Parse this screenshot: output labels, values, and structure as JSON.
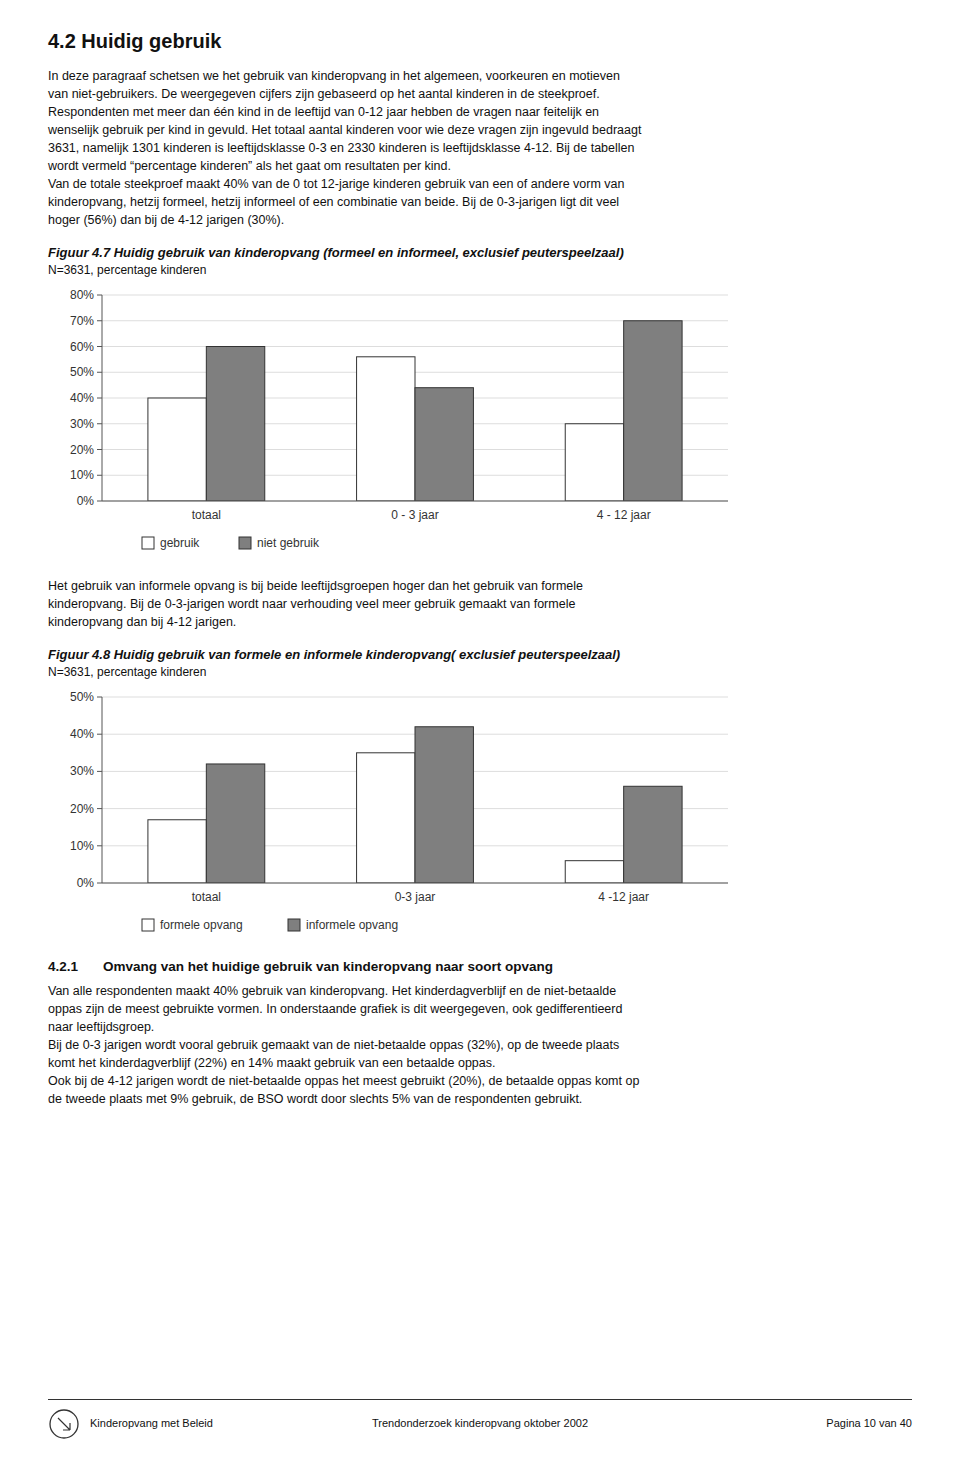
{
  "page_title": "4.2 Huidig gebruik",
  "para1_lines": [
    "In deze paragraaf schetsen we het gebruik van kinderopvang in het algemeen, voorkeuren en motieven",
    "van niet-gebruikers. De weergegeven cijfers zijn gebaseerd op het aantal kinderen in de steekproef.",
    "Respondenten met meer dan één kind in de leeftijd van 0-12 jaar hebben de vragen naar feitelijk en",
    "wenselijk gebruik per kind in gevuld. Het totaal aantal kinderen voor wie deze vragen zijn ingevuld bedraagt",
    "3631, namelijk 1301 kinderen is leeftijdsklasse 0-3 en 2330 kinderen is leeftijdsklasse 4-12. Bij de tabellen",
    "wordt vermeld “percentage kinderen” als het gaat om resultaten per kind.",
    "Van de totale steekproef maakt 40% van de 0 tot 12-jarige kinderen gebruik van een of andere vorm van",
    "kinderopvang, hetzij formeel, hetzij informeel of een combinatie van beide.  Bij de 0-3-jarigen ligt dit veel",
    "hoger  (56%) dan bij de 4-12 jarigen (30%)."
  ],
  "para2_lines": [
    "Het gebruik van informele opvang is bij beide leeftijdsgroepen hoger dan het gebruik van formele",
    "kinderopvang. Bij de 0-3-jarigen wordt naar verhouding veel meer gebruik gemaakt van formele",
    "kinderopvang dan bij 4-12 jarigen."
  ],
  "section_number": "4.2.1",
  "section_title": "Omvang van het huidige gebruik van kinderopvang naar soort opvang",
  "para3_lines": [
    "Van alle respondenten maakt 40% gebruik van kinderopvang. Het kinderdagverblijf en de niet-betaalde",
    "oppas zijn de meest gebruikte vormen. In onderstaande grafiek is dit weergegeven, ook gedifferentieerd",
    "naar leeftijdsgroep.",
    "Bij de 0-3 jarigen wordt vooral gebruik gemaakt van de niet-betaalde oppas (32%), op de tweede plaats",
    "komt het kinderdagverblijf (22%) en 14% maakt gebruik van een betaalde oppas.",
    "Ook bij de 4-12 jarigen wordt de niet-betaalde oppas het meest gebruikt (20%), de betaalde oppas komt op",
    "de tweede plaats met 9% gebruik, de BSO wordt door slechts 5% van de respondenten gebruikt."
  ],
  "footer_left": "Kinderopvang met Beleid",
  "footer_center": "Trendonderzoek kinderopvang  oktober  2002",
  "footer_right": "Pagina 10 van 40",
  "chart_data": [
    {
      "type": "bar",
      "title": "Figuur 4.7  Huidig gebruik van kinderopvang (formeel en informeel, exclusief peuterspeelzaal)",
      "subtitle": "N=3631, percentage kinderen",
      "categories": [
        "totaal",
        "0 - 3 jaar",
        "4 - 12 jaar"
      ],
      "series": [
        {
          "name": "gebruik",
          "color": "#ffffff",
          "values": [
            40,
            56,
            30
          ]
        },
        {
          "name": "niet gebruik",
          "color": "#7f7f7f",
          "values": [
            60,
            44,
            70
          ]
        }
      ],
      "ylim": [
        0,
        80
      ],
      "yticks": [
        {
          "value": 0,
          "label": "0%"
        },
        {
          "value": 10,
          "label": "10%"
        },
        {
          "value": 20,
          "label": "20%"
        },
        {
          "value": 30,
          "label": "30%"
        },
        {
          "value": 40,
          "label": "40%"
        },
        {
          "value": 50,
          "label": "50%"
        },
        {
          "value": 60,
          "label": "60%"
        },
        {
          "value": 70,
          "label": "70%"
        },
        {
          "value": 80,
          "label": "80%"
        }
      ],
      "grid": true,
      "legend": "bottom"
    },
    {
      "type": "bar",
      "title": "Figuur 4.8  Huidig gebruik van formele en informele kinderopvang( exclusief peuterspeelzaal)",
      "subtitle": "N=3631, percentage kinderen",
      "categories": [
        "totaal",
        "0-3 jaar",
        "4 -12 jaar"
      ],
      "series": [
        {
          "name": "formele opvang",
          "color": "#ffffff",
          "values": [
            17,
            35,
            6
          ]
        },
        {
          "name": "informele opvang",
          "color": "#7f7f7f",
          "values": [
            32,
            42,
            26
          ]
        }
      ],
      "ylim": [
        0,
        50
      ],
      "yticks": [
        {
          "value": 0,
          "label": "0%"
        },
        {
          "value": 10,
          "label": "10%"
        },
        {
          "value": 20,
          "label": "20%"
        },
        {
          "value": 30,
          "label": "30%"
        },
        {
          "value": 40,
          "label": "40%"
        },
        {
          "value": 50,
          "label": "50%"
        }
      ],
      "grid": true,
      "legend": "bottom"
    }
  ]
}
